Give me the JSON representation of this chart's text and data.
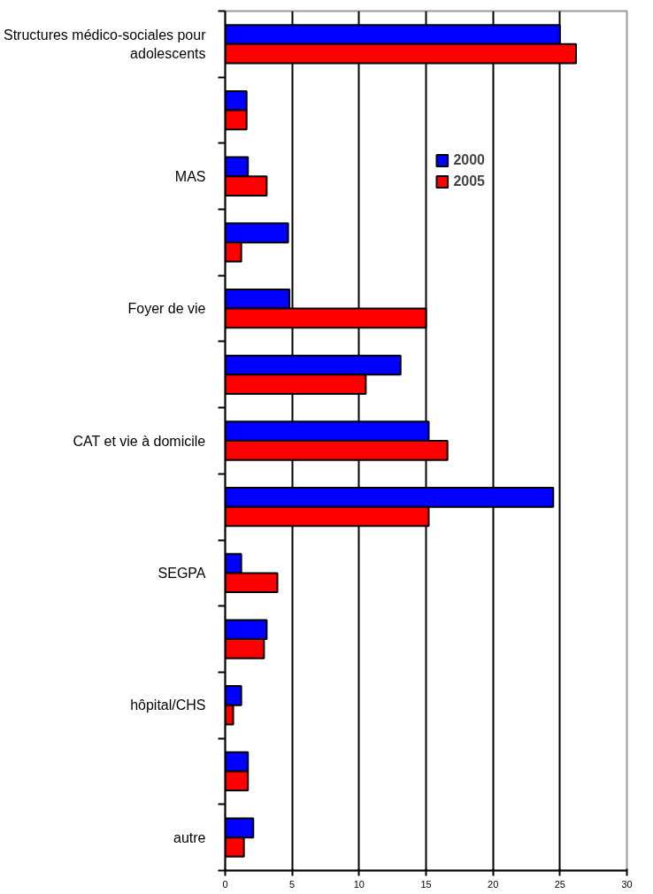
{
  "chart_data": {
    "type": "bar",
    "orientation": "horizontal",
    "categories": [
      "Structures médico-sociales pour adolescents",
      null,
      "MAS",
      null,
      "Foyer de vie",
      null,
      "CAT et vie à domicile",
      null,
      "SEGPA",
      null,
      "hôpital/CHS",
      null,
      "autre"
    ],
    "series": [
      {
        "name": "2000",
        "color": "#0000ff",
        "values": [
          25.0,
          1.6,
          1.7,
          4.7,
          4.8,
          13.1,
          15.2,
          24.5,
          1.2,
          3.1,
          1.2,
          1.7,
          2.1
        ]
      },
      {
        "name": "2005",
        "color": "#ff0000",
        "values": [
          26.2,
          1.6,
          3.1,
          1.2,
          15.0,
          10.5,
          16.6,
          15.2,
          3.9,
          2.9,
          0.6,
          1.7,
          1.4
        ]
      }
    ],
    "xlim": [
      0,
      30
    ],
    "xticks": [
      0,
      5,
      10,
      15,
      20,
      25,
      30
    ],
    "grid": "x",
    "legend": "top right"
  }
}
